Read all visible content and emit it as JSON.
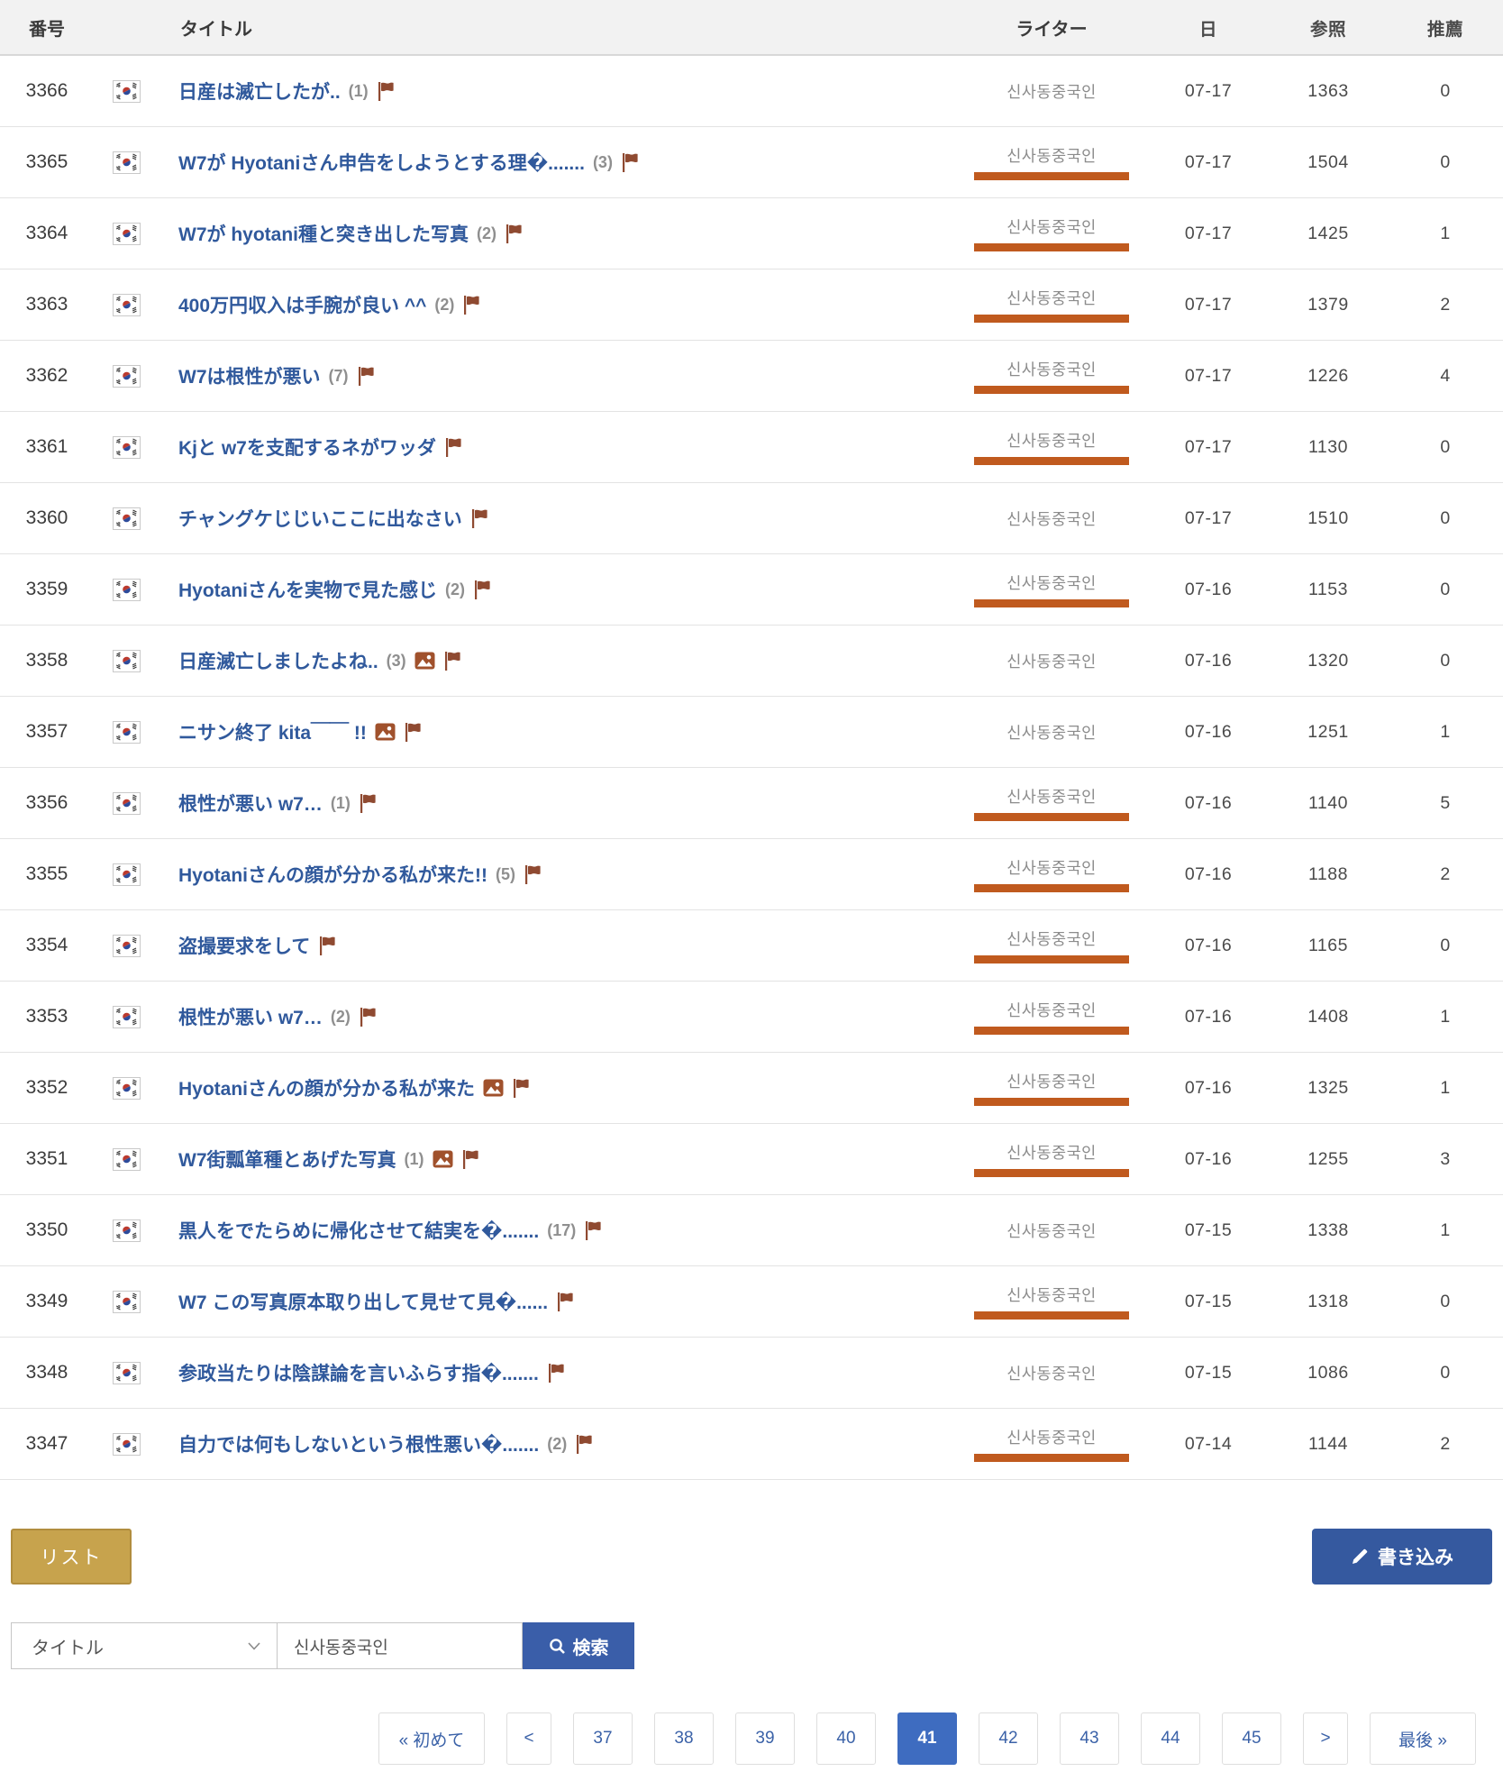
{
  "table": {
    "headers": {
      "num": "番号",
      "title": "タイトル",
      "writer": "ライター",
      "date": "日",
      "views": "参照",
      "recommend": "推薦"
    },
    "rows": [
      {
        "num": "3366",
        "title": "日産は滅亡したが..",
        "count": "(1)",
        "img": false,
        "flag": true,
        "writer": "신사동중국인",
        "bar": false,
        "date": "07-17",
        "views": "1363",
        "rec": "0"
      },
      {
        "num": "3365",
        "title": "W7が Hyotaniさん申告をしようとする理�.......",
        "count": "(3)",
        "img": false,
        "flag": true,
        "writer": "신사동중국인",
        "bar": true,
        "date": "07-17",
        "views": "1504",
        "rec": "0"
      },
      {
        "num": "3364",
        "title": "W7が hyotani種と突き出した写真",
        "count": "(2)",
        "img": false,
        "flag": true,
        "writer": "신사동중국인",
        "bar": true,
        "date": "07-17",
        "views": "1425",
        "rec": "1"
      },
      {
        "num": "3363",
        "title": "400万円収入は手腕が良い ^^",
        "count": "(2)",
        "img": false,
        "flag": true,
        "writer": "신사동중국인",
        "bar": true,
        "date": "07-17",
        "views": "1379",
        "rec": "2"
      },
      {
        "num": "3362",
        "title": "W7は根性が悪い",
        "count": "(7)",
        "img": false,
        "flag": true,
        "writer": "신사동중국인",
        "bar": true,
        "date": "07-17",
        "views": "1226",
        "rec": "4"
      },
      {
        "num": "3361",
        "title": "Kjと w7を支配するネがワッダ",
        "count": "",
        "img": false,
        "flag": true,
        "writer": "신사동중국인",
        "bar": true,
        "date": "07-17",
        "views": "1130",
        "rec": "0"
      },
      {
        "num": "3360",
        "title": "チャングケじじいここに出なさい",
        "count": "",
        "img": false,
        "flag": true,
        "writer": "신사동중국인",
        "bar": false,
        "date": "07-17",
        "views": "1510",
        "rec": "0"
      },
      {
        "num": "3359",
        "title": "Hyotaniさんを実物で見た感じ",
        "count": "(2)",
        "img": false,
        "flag": true,
        "writer": "신사동중국인",
        "bar": true,
        "date": "07-16",
        "views": "1153",
        "rec": "0"
      },
      {
        "num": "3358",
        "title": "日産滅亡しましたよね..",
        "count": "(3)",
        "img": true,
        "flag": true,
        "writer": "신사동중국인",
        "bar": false,
        "date": "07-16",
        "views": "1320",
        "rec": "0"
      },
      {
        "num": "3357",
        "title": "ニサン終了 kita￣￣ !!",
        "count": "",
        "img": true,
        "flag": true,
        "writer": "신사동중국인",
        "bar": false,
        "date": "07-16",
        "views": "1251",
        "rec": "1"
      },
      {
        "num": "3356",
        "title": "根性が悪い w7…",
        "count": "(1)",
        "img": false,
        "flag": true,
        "writer": "신사동중국인",
        "bar": true,
        "date": "07-16",
        "views": "1140",
        "rec": "5"
      },
      {
        "num": "3355",
        "title": "Hyotaniさんの顔が分かる私が来た!!",
        "count": "(5)",
        "img": false,
        "flag": true,
        "writer": "신사동중국인",
        "bar": true,
        "date": "07-16",
        "views": "1188",
        "rec": "2"
      },
      {
        "num": "3354",
        "title": "盗撮要求をして",
        "count": "",
        "img": false,
        "flag": true,
        "writer": "신사동중국인",
        "bar": true,
        "date": "07-16",
        "views": "1165",
        "rec": "0"
      },
      {
        "num": "3353",
        "title": "根性が悪い w7…",
        "count": "(2)",
        "img": false,
        "flag": true,
        "writer": "신사동중국인",
        "bar": true,
        "date": "07-16",
        "views": "1408",
        "rec": "1"
      },
      {
        "num": "3352",
        "title": "Hyotaniさんの顔が分かる私が来た",
        "count": "",
        "img": true,
        "flag": true,
        "writer": "신사동중국인",
        "bar": true,
        "date": "07-16",
        "views": "1325",
        "rec": "1"
      },
      {
        "num": "3351",
        "title": "W7街瓢箪種とあげた写真",
        "count": "(1)",
        "img": true,
        "flag": true,
        "writer": "신사동중국인",
        "bar": true,
        "date": "07-16",
        "views": "1255",
        "rec": "3"
      },
      {
        "num": "3350",
        "title": "黒人をでたらめに帰化させて結実を�.......",
        "count": "(17)",
        "img": false,
        "flag": true,
        "writer": "신사동중국인",
        "bar": false,
        "date": "07-15",
        "views": "1338",
        "rec": "1"
      },
      {
        "num": "3349",
        "title": "W7 この写真原本取り出して見せて見�......",
        "count": "",
        "img": false,
        "flag": true,
        "writer": "신사동중국인",
        "bar": true,
        "date": "07-15",
        "views": "1318",
        "rec": "0"
      },
      {
        "num": "3348",
        "title": "参政当たりは陰謀論を言いふらす指�.......",
        "count": "",
        "img": false,
        "flag": true,
        "writer": "신사동중국인",
        "bar": false,
        "date": "07-15",
        "views": "1086",
        "rec": "0"
      },
      {
        "num": "3347",
        "title": "自力では何もしないという根性悪い�.......",
        "count": "(2)",
        "img": false,
        "flag": true,
        "writer": "신사동중국인",
        "bar": true,
        "date": "07-14",
        "views": "1144",
        "rec": "2"
      }
    ]
  },
  "buttons": {
    "list": "リスト",
    "write": "書き込み",
    "search": "検索"
  },
  "search": {
    "select_value": "タイトル",
    "input_value": "신사동중국인"
  },
  "pagination": {
    "first": "« 初めて",
    "prev": "<",
    "pages": [
      "37",
      "38",
      "39",
      "40",
      "41",
      "42",
      "43",
      "44",
      "45"
    ],
    "active": "41",
    "next": ">",
    "last": "最後 »"
  },
  "colors": {
    "link_blue": "#30599c",
    "accent_blue": "#3a5ea9",
    "active_page_blue": "#3e6cc0",
    "writer_underline": "#c05a1e",
    "icon_brown": "#96502f",
    "list_gold": "#c7a34d",
    "header_bg": "#f2f2f2"
  }
}
